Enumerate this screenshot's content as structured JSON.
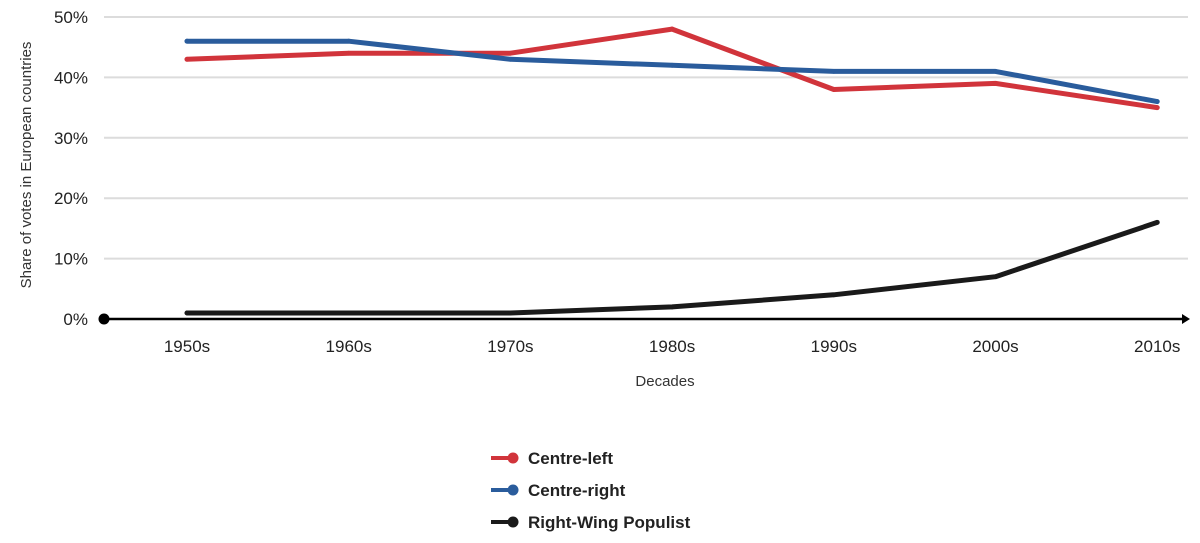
{
  "chart_data": {
    "type": "line",
    "categories": [
      "1950s",
      "1960s",
      "1970s",
      "1980s",
      "1990s",
      "2000s",
      "2010s"
    ],
    "series": [
      {
        "name": "Centre-left",
        "color": "#d1343b",
        "values": [
          43,
          44,
          44,
          48,
          38,
          39,
          35
        ]
      },
      {
        "name": "Centre-right",
        "color": "#2a5c9c",
        "values": [
          46,
          46,
          43,
          42,
          41,
          41,
          36
        ]
      },
      {
        "name": "Right-Wing Populist",
        "color": "#1a1a1a",
        "values": [
          1,
          1,
          1,
          2,
          4,
          7,
          16
        ]
      }
    ],
    "title": "",
    "xlabel": "Decades",
    "ylabel": "Share of votes in European countries",
    "ylim": [
      0,
      50
    ],
    "yticks": [
      "0%",
      "10%",
      "20%",
      "30%",
      "40%",
      "50%"
    ],
    "grid": true,
    "legend_position": "bottom-center"
  }
}
